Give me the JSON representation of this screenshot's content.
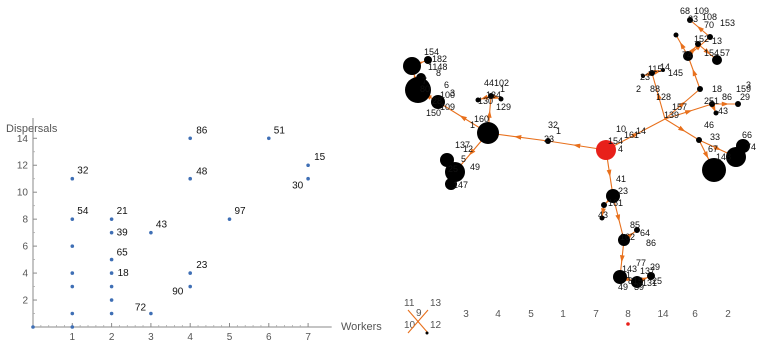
{
  "chart_data": [
    {
      "type": "scatter",
      "xlabel": "Workers",
      "ylabel": "Dispersals",
      "xlim": [
        0,
        7.6
      ],
      "ylim": [
        0,
        15.5
      ],
      "x_ticks": [
        1,
        2,
        3,
        4,
        5,
        6,
        7
      ],
      "y_ticks": [
        2,
        4,
        6,
        8,
        10,
        12,
        14
      ],
      "color": "#3f6fb5",
      "points": [
        {
          "x": 1,
          "y": 11,
          "label": "32"
        },
        {
          "x": 1,
          "y": 8,
          "label": "54"
        },
        {
          "x": 1,
          "y": 6,
          "label": ""
        },
        {
          "x": 1,
          "y": 4,
          "label": ""
        },
        {
          "x": 1,
          "y": 3,
          "label": ""
        },
        {
          "x": 1,
          "y": 1,
          "label": ""
        },
        {
          "x": 1,
          "y": 0,
          "label": ""
        },
        {
          "x": 0,
          "y": 0,
          "label": ""
        },
        {
          "x": 2,
          "y": 8,
          "label": "21"
        },
        {
          "x": 2,
          "y": 7,
          "label": "39"
        },
        {
          "x": 2,
          "y": 5,
          "label": "65"
        },
        {
          "x": 2,
          "y": 4,
          "label": "18"
        },
        {
          "x": 2,
          "y": 3,
          "label": ""
        },
        {
          "x": 2,
          "y": 2,
          "label": ""
        },
        {
          "x": 2,
          "y": 1,
          "label": ""
        },
        {
          "x": 3,
          "y": 7,
          "label": "43"
        },
        {
          "x": 3,
          "y": 1,
          "label": "72"
        },
        {
          "x": 4,
          "y": 14,
          "label": "86"
        },
        {
          "x": 4,
          "y": 11,
          "label": "48"
        },
        {
          "x": 4,
          "y": 4,
          "label": "23"
        },
        {
          "x": 4,
          "y": 3,
          "label": "90"
        },
        {
          "x": 5,
          "y": 8,
          "label": "97"
        },
        {
          "x": 6,
          "y": 14,
          "label": "51"
        },
        {
          "x": 7,
          "y": 12,
          "label": "15"
        },
        {
          "x": 7,
          "y": 11,
          "label": "30"
        }
      ]
    },
    {
      "type": "network",
      "root_color": "#e8201a",
      "node_color": "#000000",
      "edge_color": "#e8701c",
      "row_labels": [
        "3",
        "4",
        "5",
        "1",
        "7",
        "8",
        "14",
        "6",
        "2"
      ],
      "legend_labels": [
        "11",
        "13",
        "9",
        "10",
        "12"
      ],
      "node_labels": [
        "154",
        "182",
        "1148",
        "8",
        "7",
        "80",
        "100",
        "28",
        "109",
        "150",
        "6",
        "3",
        "44",
        "102",
        "1",
        "134",
        "130",
        "129",
        "160",
        "1",
        "137",
        "12",
        "5",
        "25",
        "49",
        "147",
        "68",
        "109",
        "108",
        "23",
        "70",
        "153",
        "13",
        "152",
        "154",
        "57",
        "74",
        "14",
        "115",
        "145",
        "23",
        "2",
        "88",
        "128",
        "157",
        "139",
        "18",
        "86",
        "159",
        "29",
        "3",
        "251",
        "43",
        "46",
        "33",
        "66",
        "74",
        "67",
        "148",
        "14",
        "10",
        "161",
        "154",
        "4",
        "32",
        "1",
        "23",
        "41",
        "23",
        "161",
        "43",
        "85",
        "64",
        "162",
        "86",
        "77",
        "143",
        "137",
        "29",
        "815",
        "131",
        "39",
        "1",
        "25",
        "49"
      ]
    }
  ]
}
